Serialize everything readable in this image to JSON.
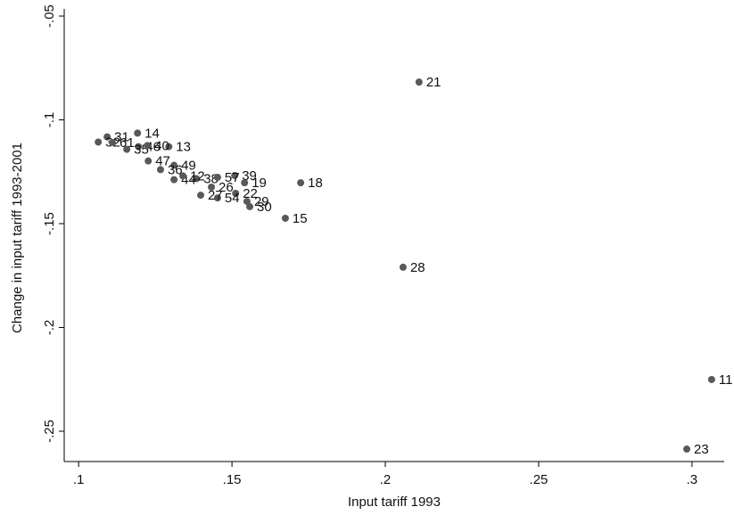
{
  "chart_data": {
    "type": "scatter",
    "x_label": "Input tariff 1993",
    "y_label": "Change in input tariff 1993-2001",
    "color": "#595959",
    "xlim": [
      0.0953,
      0.3105
    ],
    "ylim": [
      -0.2646,
      -0.0487
    ],
    "xticks": [
      {
        "value": 0.1,
        "label": ".1"
      },
      {
        "value": 0.15,
        "label": ".15"
      },
      {
        "value": 0.2,
        "label": ".2"
      },
      {
        "value": 0.25,
        "label": ".25"
      },
      {
        "value": 0.3,
        "label": ".3"
      }
    ],
    "yticks": [
      {
        "value": -0.05,
        "label": "-.05"
      },
      {
        "value": -0.1,
        "label": "-.1"
      },
      {
        "value": -0.15,
        "label": "-.15"
      },
      {
        "value": -0.2,
        "label": "-.2"
      },
      {
        "value": -0.25,
        "label": "-.25"
      }
    ],
    "points": [
      {
        "label": "21",
        "x": 0.211,
        "y": -0.0818
      },
      {
        "label": "18",
        "x": 0.1724,
        "y": -0.1303
      },
      {
        "label": "15",
        "x": 0.1674,
        "y": -0.1474
      },
      {
        "label": "28",
        "x": 0.2058,
        "y": -0.171
      },
      {
        "label": "11",
        "x": 0.3064,
        "y": -0.2251
      },
      {
        "label": "23",
        "x": 0.2983,
        "y": -0.2586
      },
      {
        "label": "14",
        "x": 0.1192,
        "y": -0.1064
      },
      {
        "label": "13",
        "x": 0.1294,
        "y": -0.1129
      },
      {
        "label": "39",
        "x": 0.1509,
        "y": -0.1268
      },
      {
        "label": "19",
        "x": 0.1541,
        "y": -0.1303
      },
      {
        "label": "22",
        "x": 0.1512,
        "y": -0.1354
      },
      {
        "label": "29",
        "x": 0.1549,
        "y": -0.1393
      },
      {
        "label": "30",
        "x": 0.1558,
        "y": -0.1418
      },
      {
        "label": "54",
        "x": 0.1453,
        "y": -0.1376
      },
      {
        "label": "27",
        "x": 0.1398,
        "y": -0.1363
      },
      {
        "label": "31",
        "x": 0.1093,
        "y": -0.1082
      },
      {
        "label": "32",
        "x": 0.1064,
        "y": -0.1107
      },
      {
        "label": "61",
        "x": 0.111,
        "y": -0.1109
      },
      {
        "label": "46",
        "x": 0.1195,
        "y": -0.1129
      },
      {
        "label": "35",
        "x": 0.1157,
        "y": -0.1142
      },
      {
        "label": "40",
        "x": 0.1224,
        "y": -0.1124
      },
      {
        "label": "47",
        "x": 0.1227,
        "y": -0.1198
      },
      {
        "label": "49",
        "x": 0.1311,
        "y": -0.1219
      },
      {
        "label": "36",
        "x": 0.1267,
        "y": -0.124
      },
      {
        "label": "38",
        "x": 0.1384,
        "y": -0.1283
      },
      {
        "label": "44",
        "x": 0.1311,
        "y": -0.1288
      },
      {
        "label": "12",
        "x": 0.134,
        "y": -0.127
      },
      {
        "label": "57",
        "x": 0.1453,
        "y": -0.1277
      },
      {
        "label": "26",
        "x": 0.1433,
        "y": -0.1324
      }
    ]
  }
}
